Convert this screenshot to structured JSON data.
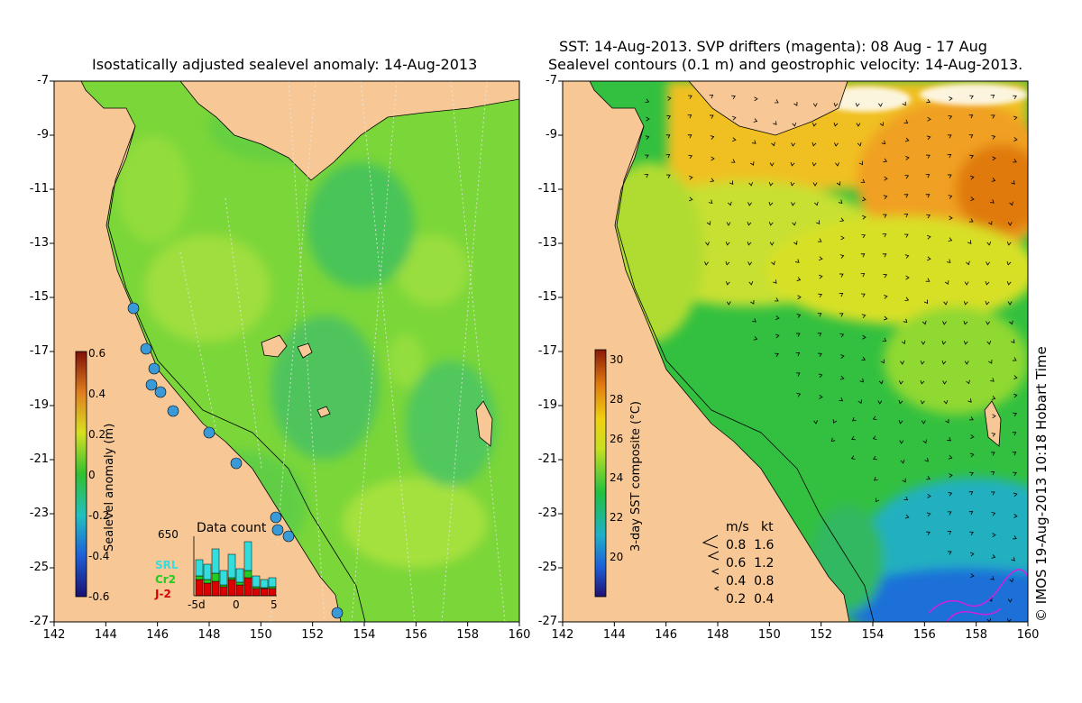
{
  "left_panel": {
    "title": "Isostatically adjusted sealevel anomaly: 14-Aug-2013",
    "colorbar": {
      "label": "Sealevel anomaly (m)",
      "ticks": [
        "0.6",
        "0.4",
        "0.2",
        "0",
        "-0.2",
        "-0.4",
        "-0.6"
      ],
      "range": [
        -0.6,
        0.6
      ]
    },
    "data_count": {
      "title": "Data count",
      "max_label": "650",
      "x_labels": [
        "-5d",
        "0",
        "5"
      ],
      "legend": [
        {
          "name": "SRL",
          "color": "#33dddd"
        },
        {
          "name": "Cr2",
          "color": "#22cc22"
        },
        {
          "name": "J-2",
          "color": "#dd0000"
        }
      ]
    }
  },
  "right_panel": {
    "title_line1": "SST: 14-Aug-2013. SVP drifters (magenta): 08 Aug - 17 Aug",
    "title_line2": "Sealevel contours (0.1 m) and geostrophic velocity: 14-Aug-2013.",
    "colorbar": {
      "label": "3-day SST composite (°C)",
      "ticks": [
        "30",
        "28",
        "26",
        "24",
        "22",
        "20"
      ],
      "range": [
        18,
        30.5
      ]
    },
    "velocity_legend": {
      "header_ms": "m/s",
      "header_kt": "kt",
      "rows": [
        {
          "ms": "0.8",
          "kt": "1.6"
        },
        {
          "ms": "0.6",
          "kt": "1.2"
        },
        {
          "ms": "0.4",
          "kt": "0.8"
        },
        {
          "ms": "0.2",
          "kt": "0.4"
        }
      ]
    }
  },
  "axes": {
    "lat_ticks": [
      "-7",
      "-9",
      "-11",
      "-13",
      "-15",
      "-17",
      "-19",
      "-21",
      "-23",
      "-25",
      "-27"
    ],
    "lon_ticks": [
      "142",
      "144",
      "146",
      "148",
      "150",
      "152",
      "154",
      "156",
      "158",
      "160"
    ],
    "lat_range": [
      -27,
      -7
    ],
    "lon_range": [
      142,
      160
    ]
  },
  "credit": "© IMOS 19-Aug-2013 10:18 Hobart Time",
  "colors": {
    "land": "#f7c896",
    "sea_left": "#7bd639",
    "sst_warm": "#f0a020",
    "sst_cool": "#1c7fd8"
  }
}
